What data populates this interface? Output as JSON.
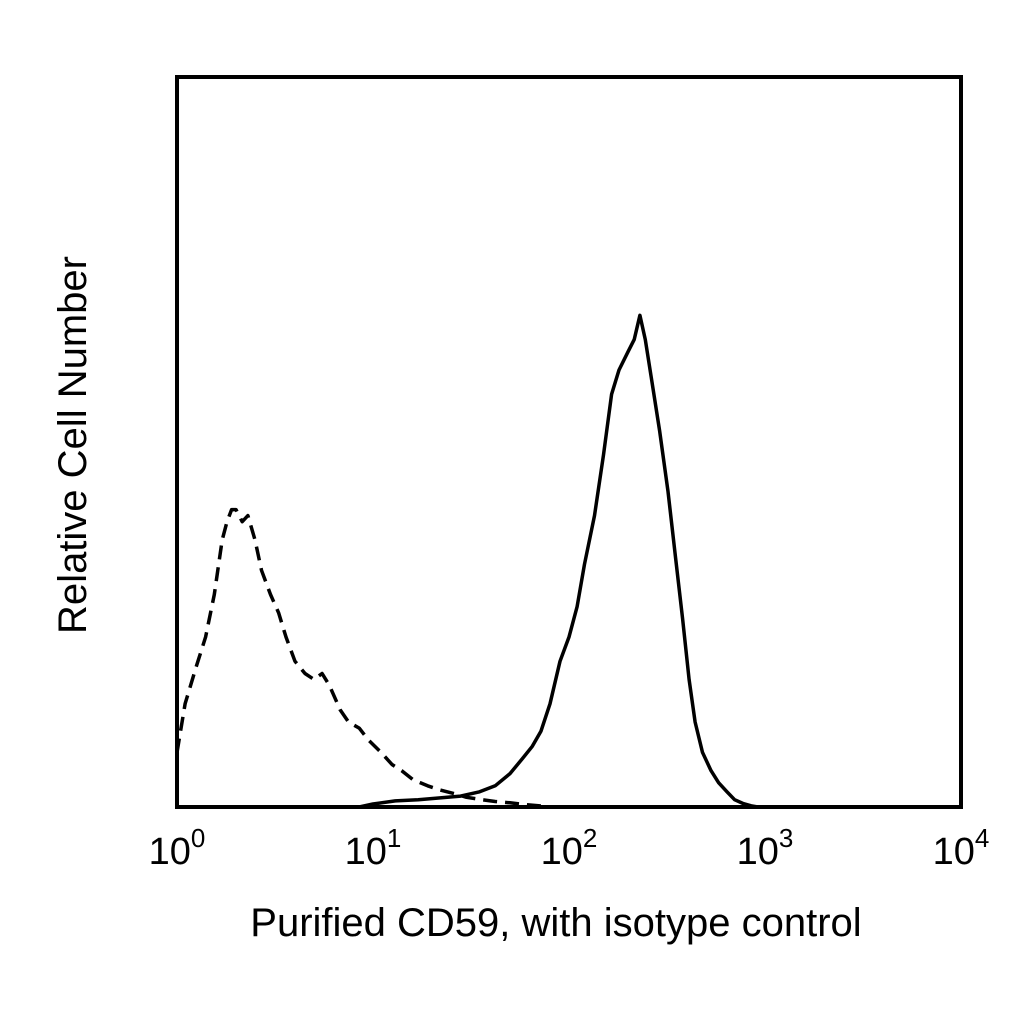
{
  "chart_data": {
    "type": "line",
    "title": "",
    "xlabel": "Purified CD59, with isotype control",
    "ylabel": "Relative Cell Number",
    "x_scale": "log",
    "xlim": [
      1,
      10000
    ],
    "ylim": [
      0,
      100
    ],
    "grid": false,
    "legend": "none",
    "x_ticks": [
      {
        "value": 1,
        "base": "10",
        "exp": "0"
      },
      {
        "value": 10,
        "base": "10",
        "exp": "1"
      },
      {
        "value": 100,
        "base": "10",
        "exp": "2"
      },
      {
        "value": 1000,
        "base": "10",
        "exp": "3"
      },
      {
        "value": 10000,
        "base": "10",
        "exp": "4"
      }
    ],
    "series": [
      {
        "line_style": "dashed",
        "color": "#000000",
        "points": [
          [
            1.0,
            9
          ],
          [
            1.1,
            17
          ],
          [
            1.25,
            23
          ],
          [
            1.4,
            28
          ],
          [
            1.55,
            35
          ],
          [
            1.7,
            44
          ],
          [
            1.8,
            47
          ],
          [
            1.9,
            49
          ],
          [
            2.0,
            49
          ],
          [
            2.15,
            47
          ],
          [
            2.3,
            48
          ],
          [
            2.5,
            44
          ],
          [
            2.7,
            39
          ],
          [
            3.0,
            35
          ],
          [
            3.3,
            32
          ],
          [
            3.6,
            28
          ],
          [
            4.0,
            24
          ],
          [
            4.5,
            22
          ],
          [
            5.0,
            21
          ],
          [
            5.5,
            22
          ],
          [
            6.0,
            20
          ],
          [
            6.8,
            16
          ],
          [
            7.5,
            14
          ],
          [
            8.5,
            13
          ],
          [
            9.5,
            11
          ],
          [
            11,
            9
          ],
          [
            12.5,
            7
          ],
          [
            14,
            6
          ],
          [
            16,
            4.5
          ],
          [
            19,
            3.5
          ],
          [
            22,
            2.8
          ],
          [
            26,
            2.2
          ],
          [
            30,
            1.6
          ],
          [
            36,
            1.2
          ],
          [
            42,
            0.9
          ],
          [
            50,
            0.7
          ],
          [
            60,
            0.4
          ],
          [
            70,
            0.2
          ],
          [
            80,
            0
          ]
        ]
      },
      {
        "line_style": "solid",
        "color": "#000000",
        "points": [
          [
            8.5,
            0
          ],
          [
            10,
            0.5
          ],
          [
            13,
            1
          ],
          [
            17,
            1.2
          ],
          [
            22,
            1.5
          ],
          [
            28,
            1.8
          ],
          [
            35,
            2.5
          ],
          [
            42,
            3.5
          ],
          [
            50,
            5.5
          ],
          [
            58,
            8
          ],
          [
            65,
            10
          ],
          [
            72,
            12.5
          ],
          [
            80,
            17
          ],
          [
            90,
            24
          ],
          [
            100,
            28
          ],
          [
            110,
            33
          ],
          [
            120,
            40
          ],
          [
            135,
            48
          ],
          [
            150,
            58
          ],
          [
            165,
            68
          ],
          [
            180,
            72
          ],
          [
            200,
            75
          ],
          [
            215,
            77
          ],
          [
            230,
            81
          ],
          [
            245,
            77
          ],
          [
            265,
            70
          ],
          [
            290,
            62
          ],
          [
            320,
            52
          ],
          [
            350,
            41
          ],
          [
            380,
            31
          ],
          [
            410,
            21
          ],
          [
            440,
            14
          ],
          [
            480,
            9
          ],
          [
            530,
            6
          ],
          [
            580,
            4
          ],
          [
            640,
            2.5
          ],
          [
            700,
            1.2
          ],
          [
            770,
            0.6
          ],
          [
            850,
            0.2
          ],
          [
            920,
            0
          ]
        ]
      }
    ]
  }
}
